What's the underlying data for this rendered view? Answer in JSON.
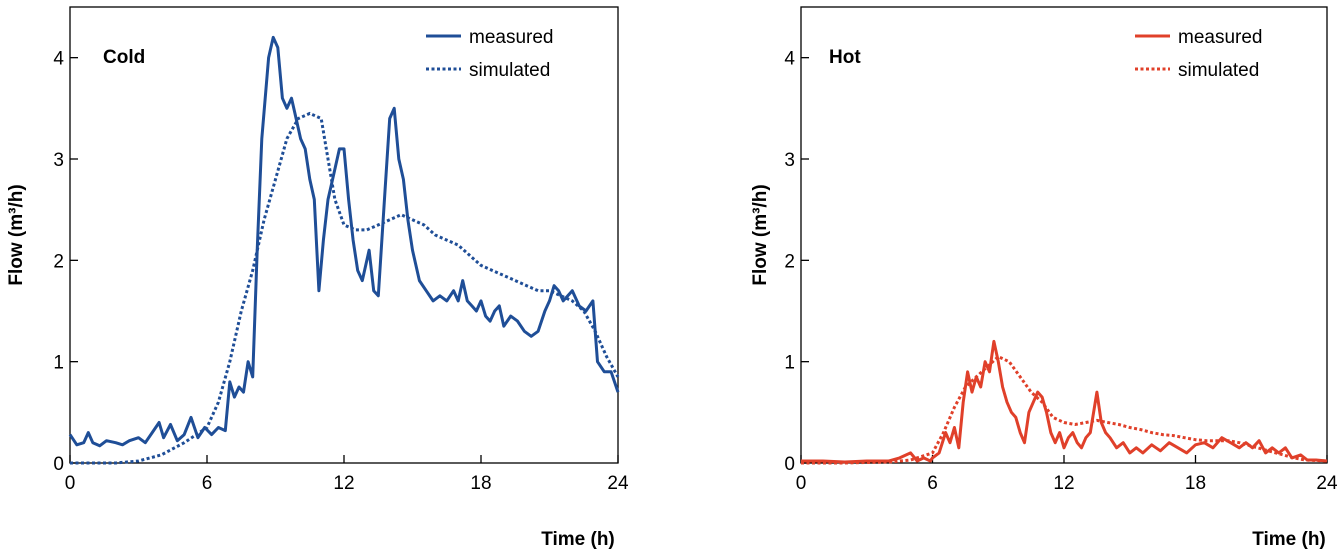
{
  "chart_data": [
    {
      "type": "line",
      "panel_label": "Cold",
      "xlabel": "Time (h)",
      "ylabel": "Flow (m³/h)",
      "xlim": [
        0,
        24
      ],
      "ylim": [
        0,
        4.5
      ],
      "xticks": [
        "0",
        "6",
        "12",
        "18",
        "24"
      ],
      "yticks": [
        "0",
        "1",
        "2",
        "3",
        "4"
      ],
      "legend_position": "top-right",
      "color": "#1f4e97",
      "series": [
        {
          "name": "measured",
          "style": "solid",
          "points": [
            [
              0,
              0.28
            ],
            [
              0.3,
              0.18
            ],
            [
              0.6,
              0.2
            ],
            [
              0.8,
              0.3
            ],
            [
              1.0,
              0.2
            ],
            [
              1.3,
              0.17
            ],
            [
              1.6,
              0.22
            ],
            [
              2.0,
              0.2
            ],
            [
              2.3,
              0.18
            ],
            [
              2.6,
              0.22
            ],
            [
              3.0,
              0.25
            ],
            [
              3.3,
              0.2
            ],
            [
              3.6,
              0.3
            ],
            [
              3.9,
              0.4
            ],
            [
              4.1,
              0.25
            ],
            [
              4.4,
              0.38
            ],
            [
              4.7,
              0.22
            ],
            [
              5.0,
              0.28
            ],
            [
              5.3,
              0.45
            ],
            [
              5.6,
              0.25
            ],
            [
              5.9,
              0.35
            ],
            [
              6.2,
              0.28
            ],
            [
              6.5,
              0.35
            ],
            [
              6.8,
              0.32
            ],
            [
              7.0,
              0.8
            ],
            [
              7.2,
              0.65
            ],
            [
              7.4,
              0.75
            ],
            [
              7.6,
              0.7
            ],
            [
              7.8,
              1.0
            ],
            [
              8.0,
              0.85
            ],
            [
              8.2,
              2.1
            ],
            [
              8.4,
              3.2
            ],
            [
              8.7,
              4.0
            ],
            [
              8.9,
              4.2
            ],
            [
              9.1,
              4.1
            ],
            [
              9.3,
              3.6
            ],
            [
              9.5,
              3.5
            ],
            [
              9.7,
              3.6
            ],
            [
              9.9,
              3.4
            ],
            [
              10.1,
              3.2
            ],
            [
              10.3,
              3.1
            ],
            [
              10.5,
              2.8
            ],
            [
              10.7,
              2.6
            ],
            [
              10.9,
              1.7
            ],
            [
              11.1,
              2.2
            ],
            [
              11.3,
              2.6
            ],
            [
              11.5,
              2.8
            ],
            [
              11.8,
              3.1
            ],
            [
              12.0,
              3.1
            ],
            [
              12.2,
              2.6
            ],
            [
              12.4,
              2.2
            ],
            [
              12.6,
              1.9
            ],
            [
              12.8,
              1.8
            ],
            [
              13.1,
              2.1
            ],
            [
              13.3,
              1.7
            ],
            [
              13.5,
              1.65
            ],
            [
              13.8,
              2.7
            ],
            [
              14.0,
              3.4
            ],
            [
              14.2,
              3.5
            ],
            [
              14.4,
              3.0
            ],
            [
              14.6,
              2.8
            ],
            [
              14.8,
              2.4
            ],
            [
              15.0,
              2.1
            ],
            [
              15.3,
              1.8
            ],
            [
              15.6,
              1.7
            ],
            [
              15.9,
              1.6
            ],
            [
              16.2,
              1.65
            ],
            [
              16.5,
              1.6
            ],
            [
              16.8,
              1.7
            ],
            [
              17.0,
              1.6
            ],
            [
              17.2,
              1.8
            ],
            [
              17.4,
              1.6
            ],
            [
              17.6,
              1.55
            ],
            [
              17.8,
              1.5
            ],
            [
              18.0,
              1.6
            ],
            [
              18.2,
              1.45
            ],
            [
              18.4,
              1.4
            ],
            [
              18.6,
              1.5
            ],
            [
              18.8,
              1.55
            ],
            [
              19.0,
              1.35
            ],
            [
              19.3,
              1.45
            ],
            [
              19.6,
              1.4
            ],
            [
              19.9,
              1.3
            ],
            [
              20.2,
              1.25
            ],
            [
              20.5,
              1.3
            ],
            [
              20.8,
              1.5
            ],
            [
              21.0,
              1.6
            ],
            [
              21.2,
              1.75
            ],
            [
              21.4,
              1.7
            ],
            [
              21.6,
              1.6
            ],
            [
              21.8,
              1.65
            ],
            [
              22.0,
              1.7
            ],
            [
              22.3,
              1.55
            ],
            [
              22.6,
              1.5
            ],
            [
              22.9,
              1.6
            ],
            [
              23.1,
              1.0
            ],
            [
              23.4,
              0.9
            ],
            [
              23.7,
              0.9
            ],
            [
              24,
              0.7
            ]
          ]
        },
        {
          "name": "simulated",
          "style": "dotted",
          "points": [
            [
              0,
              0
            ],
            [
              1,
              0
            ],
            [
              2,
              0
            ],
            [
              3,
              0.02
            ],
            [
              4,
              0.08
            ],
            [
              5,
              0.2
            ],
            [
              6,
              0.35
            ],
            [
              6.5,
              0.6
            ],
            [
              7.0,
              1.0
            ],
            [
              7.5,
              1.5
            ],
            [
              8.0,
              1.9
            ],
            [
              8.5,
              2.4
            ],
            [
              9.0,
              2.8
            ],
            [
              9.5,
              3.2
            ],
            [
              10.0,
              3.4
            ],
            [
              10.5,
              3.45
            ],
            [
              11.0,
              3.4
            ],
            [
              11.3,
              3.0
            ],
            [
              11.6,
              2.6
            ],
            [
              12.0,
              2.35
            ],
            [
              12.5,
              2.3
            ],
            [
              13.0,
              2.3
            ],
            [
              13.5,
              2.35
            ],
            [
              14.0,
              2.4
            ],
            [
              14.5,
              2.45
            ],
            [
              15.0,
              2.4
            ],
            [
              15.5,
              2.35
            ],
            [
              16.0,
              2.25
            ],
            [
              16.5,
              2.2
            ],
            [
              17.0,
              2.15
            ],
            [
              17.5,
              2.05
            ],
            [
              18.0,
              1.95
            ],
            [
              18.5,
              1.9
            ],
            [
              19.0,
              1.85
            ],
            [
              19.5,
              1.8
            ],
            [
              20.0,
              1.75
            ],
            [
              20.5,
              1.7
            ],
            [
              21.0,
              1.7
            ],
            [
              21.5,
              1.65
            ],
            [
              22.0,
              1.6
            ],
            [
              22.5,
              1.5
            ],
            [
              23.0,
              1.3
            ],
            [
              23.5,
              1.05
            ],
            [
              24,
              0.85
            ]
          ]
        }
      ]
    },
    {
      "type": "line",
      "panel_label": "Hot",
      "xlabel": "Time (h)",
      "ylabel": "Flow (m³/h)",
      "xlim": [
        0,
        24
      ],
      "ylim": [
        0,
        4.5
      ],
      "xticks": [
        "0",
        "6",
        "12",
        "18",
        "24"
      ],
      "yticks": [
        "0",
        "1",
        "2",
        "3",
        "4"
      ],
      "legend_position": "top-right",
      "color": "#e0402a",
      "series": [
        {
          "name": "measured",
          "style": "solid",
          "points": [
            [
              0,
              0.02
            ],
            [
              1,
              0.02
            ],
            [
              2,
              0.01
            ],
            [
              3,
              0.02
            ],
            [
              4,
              0.02
            ],
            [
              4.5,
              0.05
            ],
            [
              5,
              0.1
            ],
            [
              5.3,
              0.02
            ],
            [
              5.6,
              0.05
            ],
            [
              5.9,
              0.02
            ],
            [
              6.0,
              0.05
            ],
            [
              6.3,
              0.1
            ],
            [
              6.6,
              0.3
            ],
            [
              6.8,
              0.2
            ],
            [
              7.0,
              0.35
            ],
            [
              7.2,
              0.15
            ],
            [
              7.4,
              0.6
            ],
            [
              7.6,
              0.9
            ],
            [
              7.8,
              0.7
            ],
            [
              8.0,
              0.85
            ],
            [
              8.2,
              0.75
            ],
            [
              8.4,
              1.0
            ],
            [
              8.6,
              0.9
            ],
            [
              8.8,
              1.2
            ],
            [
              9.0,
              1.0
            ],
            [
              9.2,
              0.75
            ],
            [
              9.4,
              0.6
            ],
            [
              9.6,
              0.5
            ],
            [
              9.8,
              0.45
            ],
            [
              10.0,
              0.3
            ],
            [
              10.2,
              0.2
            ],
            [
              10.4,
              0.5
            ],
            [
              10.6,
              0.6
            ],
            [
              10.8,
              0.7
            ],
            [
              11.0,
              0.65
            ],
            [
              11.2,
              0.5
            ],
            [
              11.4,
              0.3
            ],
            [
              11.6,
              0.2
            ],
            [
              11.8,
              0.3
            ],
            [
              12.0,
              0.15
            ],
            [
              12.2,
              0.25
            ],
            [
              12.4,
              0.3
            ],
            [
              12.6,
              0.2
            ],
            [
              12.8,
              0.15
            ],
            [
              13.0,
              0.25
            ],
            [
              13.2,
              0.3
            ],
            [
              13.5,
              0.7
            ],
            [
              13.7,
              0.4
            ],
            [
              13.9,
              0.3
            ],
            [
              14.1,
              0.25
            ],
            [
              14.4,
              0.15
            ],
            [
              14.7,
              0.2
            ],
            [
              15.0,
              0.1
            ],
            [
              15.3,
              0.15
            ],
            [
              15.6,
              0.1
            ],
            [
              16.0,
              0.18
            ],
            [
              16.4,
              0.12
            ],
            [
              16.8,
              0.2
            ],
            [
              17.2,
              0.15
            ],
            [
              17.6,
              0.1
            ],
            [
              18.0,
              0.18
            ],
            [
              18.4,
              0.2
            ],
            [
              18.8,
              0.15
            ],
            [
              19.2,
              0.25
            ],
            [
              19.6,
              0.2
            ],
            [
              20.0,
              0.15
            ],
            [
              20.3,
              0.2
            ],
            [
              20.6,
              0.15
            ],
            [
              20.9,
              0.22
            ],
            [
              21.2,
              0.1
            ],
            [
              21.5,
              0.15
            ],
            [
              21.8,
              0.1
            ],
            [
              22.1,
              0.15
            ],
            [
              22.4,
              0.05
            ],
            [
              22.8,
              0.08
            ],
            [
              23.1,
              0.03
            ],
            [
              23.5,
              0.03
            ],
            [
              24,
              0.02
            ]
          ]
        },
        {
          "name": "simulated",
          "style": "dotted",
          "points": [
            [
              0,
              0
            ],
            [
              2,
              0
            ],
            [
              4,
              0.01
            ],
            [
              5,
              0.03
            ],
            [
              6,
              0.1
            ],
            [
              6.5,
              0.3
            ],
            [
              7.0,
              0.55
            ],
            [
              7.5,
              0.75
            ],
            [
              8.0,
              0.85
            ],
            [
              8.5,
              0.95
            ],
            [
              9.0,
              1.05
            ],
            [
              9.5,
              1.0
            ],
            [
              10.0,
              0.85
            ],
            [
              10.5,
              0.7
            ],
            [
              11.0,
              0.6
            ],
            [
              11.5,
              0.45
            ],
            [
              12.0,
              0.4
            ],
            [
              12.5,
              0.38
            ],
            [
              13.0,
              0.4
            ],
            [
              13.5,
              0.42
            ],
            [
              14.0,
              0.4
            ],
            [
              14.5,
              0.38
            ],
            [
              15.0,
              0.35
            ],
            [
              15.5,
              0.33
            ],
            [
              16.0,
              0.3
            ],
            [
              16.5,
              0.28
            ],
            [
              17.0,
              0.27
            ],
            [
              17.5,
              0.25
            ],
            [
              18.0,
              0.23
            ],
            [
              18.5,
              0.22
            ],
            [
              19.0,
              0.22
            ],
            [
              19.5,
              0.22
            ],
            [
              20.0,
              0.2
            ],
            [
              20.5,
              0.17
            ],
            [
              21.0,
              0.14
            ],
            [
              21.5,
              0.11
            ],
            [
              22.0,
              0.08
            ],
            [
              22.5,
              0.05
            ],
            [
              23.0,
              0.03
            ],
            [
              24,
              0.02
            ]
          ]
        }
      ]
    }
  ]
}
